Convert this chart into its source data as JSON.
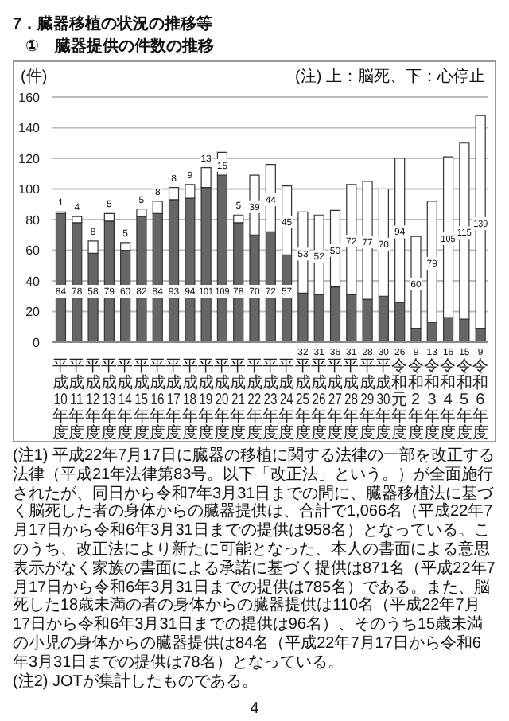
{
  "chart_data": {
    "type": "bar",
    "title": "7．臓器移植の状況の推移等",
    "subtitle": "①　臓器提供の件数の推移",
    "ylabel": "(件)",
    "categories": [
      "平成10年度",
      "平成11年度",
      "平成12年度",
      "平成13年度",
      "平成14年度",
      "平成15年度",
      "平成16年度",
      "平成17年度",
      "平成18年度",
      "平成19年度",
      "平成20年度",
      "平成21年度",
      "平成22年度",
      "平成23年度",
      "平成24年度",
      "平成25年度",
      "平成26年度",
      "平成27年度",
      "平成28年度",
      "平成29年度",
      "平成30年度",
      "令和元年度",
      "令和2年度",
      "令和3年度",
      "令和4年度",
      "令和5年度",
      "令和6年度"
    ],
    "series": [
      {
        "color": "#666666",
        "values": [
          84,
          78,
          58,
          79,
          60,
          82,
          84,
          93,
          94,
          101,
          109,
          78,
          70,
          72,
          57,
          32,
          31,
          36,
          31,
          28,
          30,
          26,
          9,
          13,
          16,
          15,
          9
        ]
      },
      {
        "color": "#ffffff",
        "values": [
          1,
          4,
          8,
          5,
          5,
          5,
          8,
          8,
          9,
          13,
          15,
          5,
          39,
          44,
          45,
          53,
          52,
          50,
          72,
          77,
          70,
          94,
          60,
          79,
          105,
          115,
          139
        ]
      }
    ],
    "stacked": true,
    "data_labels": true,
    "ylim": [
      0,
      160
    ],
    "yticks": [
      0,
      20,
      40,
      60,
      80,
      100,
      120,
      140,
      160
    ],
    "grid": "y",
    "annotations": [
      "(注) 上：脳死、下：心停止",
      "(注1) 平成22年7月17日に臓器の移植に関する法律の一部を改正する法律（平成21年法律第83号。以下「改正法」という。）が全面施行されたが、同日から令和7年3月31日までの間に、臓器移植法に基づく脳死した者の身体からの臓器提供は、合計で1,066名（平成22年7月17日から令和6年3月31日までの提供は958名）となっている。このうち、改正法により新たに可能となった、本人の書面による意思表示がなく家族の書面による承諾に基づく提供は871名（平成22年7月17日から令和6年3月31日までの提供は785名）である。また、脳死した18歳未満の者の身体からの臓器提供は110名（平成22年7月17日から令和6年3月31日までの提供は96名）、そのうち15歳未満の小児の身体からの臓器提供は84名（平成22年7月17日から令和6年3月31日までの提供は78名）となっている。",
      "(注2) JOTが集計したものである。",
      "4"
    ]
  }
}
